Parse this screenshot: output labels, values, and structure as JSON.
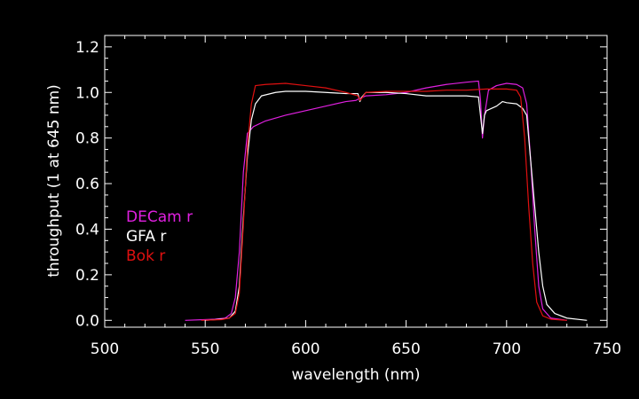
{
  "chart_data": {
    "type": "line",
    "title": "",
    "xlabel": "wavelength (nm)",
    "ylabel": "throughput (1 at 645 nm)",
    "xlim": [
      500,
      750
    ],
    "ylim": [
      -0.03,
      1.25
    ],
    "x_ticks": [
      500,
      550,
      600,
      650,
      700,
      750
    ],
    "y_ticks": [
      0.0,
      0.2,
      0.4,
      0.6,
      0.8,
      1.0,
      1.2
    ],
    "x_tick_labels": [
      "500",
      "550",
      "600",
      "650",
      "700",
      "750"
    ],
    "y_tick_labels": [
      "0.0",
      "0.2",
      "0.4",
      "0.6",
      "0.8",
      "1.0",
      "1.2"
    ],
    "grid": false,
    "legend_placement": "left-middle",
    "background": "#000000",
    "axis_color": "#ffffff",
    "series": [
      {
        "name": "DECam r",
        "color": "#e020e0",
        "points": [
          [
            540,
            0.0
          ],
          [
            555,
            0.005
          ],
          [
            560,
            0.01
          ],
          [
            563,
            0.03
          ],
          [
            565,
            0.1
          ],
          [
            567,
            0.3
          ],
          [
            569,
            0.65
          ],
          [
            571,
            0.82
          ],
          [
            574,
            0.85
          ],
          [
            580,
            0.875
          ],
          [
            590,
            0.9
          ],
          [
            600,
            0.92
          ],
          [
            610,
            0.94
          ],
          [
            620,
            0.96
          ],
          [
            625,
            0.965
          ],
          [
            626,
            0.97
          ],
          [
            630,
            0.985
          ],
          [
            640,
            0.99
          ],
          [
            650,
            1.0
          ],
          [
            660,
            1.02
          ],
          [
            670,
            1.035
          ],
          [
            680,
            1.045
          ],
          [
            686,
            1.05
          ],
          [
            687,
            0.97
          ],
          [
            688,
            0.8
          ],
          [
            689,
            0.9
          ],
          [
            691,
            1.01
          ],
          [
            695,
            1.03
          ],
          [
            700,
            1.04
          ],
          [
            705,
            1.035
          ],
          [
            708,
            1.02
          ],
          [
            710,
            0.95
          ],
          [
            712,
            0.7
          ],
          [
            714,
            0.4
          ],
          [
            716,
            0.15
          ],
          [
            718,
            0.05
          ],
          [
            722,
            0.01
          ],
          [
            730,
            0.0
          ]
        ]
      },
      {
        "name": "GFA r",
        "color": "#ffffff",
        "points": [
          [
            550,
            0.0
          ],
          [
            558,
            0.005
          ],
          [
            562,
            0.01
          ],
          [
            565,
            0.04
          ],
          [
            567,
            0.15
          ],
          [
            569,
            0.45
          ],
          [
            571,
            0.72
          ],
          [
            573,
            0.88
          ],
          [
            575,
            0.95
          ],
          [
            578,
            0.985
          ],
          [
            585,
            1.0
          ],
          [
            590,
            1.005
          ],
          [
            600,
            1.005
          ],
          [
            610,
            1.0
          ],
          [
            620,
            0.995
          ],
          [
            626,
            0.995
          ],
          [
            627,
            0.96
          ],
          [
            628,
            0.98
          ],
          [
            630,
            1.0
          ],
          [
            640,
            1.0
          ],
          [
            650,
            0.995
          ],
          [
            660,
            0.985
          ],
          [
            670,
            0.985
          ],
          [
            680,
            0.985
          ],
          [
            686,
            0.98
          ],
          [
            687,
            0.9
          ],
          [
            688,
            0.82
          ],
          [
            689,
            0.9
          ],
          [
            690,
            0.92
          ],
          [
            695,
            0.94
          ],
          [
            698,
            0.96
          ],
          [
            700,
            0.955
          ],
          [
            705,
            0.95
          ],
          [
            708,
            0.93
          ],
          [
            710,
            0.9
          ],
          [
            712,
            0.7
          ],
          [
            714,
            0.5
          ],
          [
            716,
            0.3
          ],
          [
            718,
            0.15
          ],
          [
            720,
            0.07
          ],
          [
            724,
            0.03
          ],
          [
            730,
            0.01
          ],
          [
            740,
            0.0
          ]
        ]
      },
      {
        "name": "Bok r",
        "color": "#e01010",
        "points": [
          [
            548,
            0.0
          ],
          [
            558,
            0.003
          ],
          [
            562,
            0.01
          ],
          [
            565,
            0.03
          ],
          [
            567,
            0.12
          ],
          [
            569,
            0.42
          ],
          [
            571,
            0.76
          ],
          [
            573,
            0.95
          ],
          [
            575,
            1.03
          ],
          [
            580,
            1.035
          ],
          [
            590,
            1.04
          ],
          [
            600,
            1.03
          ],
          [
            610,
            1.02
          ],
          [
            620,
            1.0
          ],
          [
            626,
            0.985
          ],
          [
            627,
            0.965
          ],
          [
            628,
            0.975
          ],
          [
            630,
            1.0
          ],
          [
            640,
            1.005
          ],
          [
            650,
            1.005
          ],
          [
            660,
            1.005
          ],
          [
            670,
            1.01
          ],
          [
            680,
            1.01
          ],
          [
            690,
            1.015
          ],
          [
            700,
            1.015
          ],
          [
            705,
            1.01
          ],
          [
            707,
            0.98
          ],
          [
            709,
            0.8
          ],
          [
            711,
            0.5
          ],
          [
            713,
            0.25
          ],
          [
            715,
            0.08
          ],
          [
            718,
            0.02
          ],
          [
            722,
            0.005
          ],
          [
            730,
            0.0
          ]
        ]
      }
    ]
  }
}
